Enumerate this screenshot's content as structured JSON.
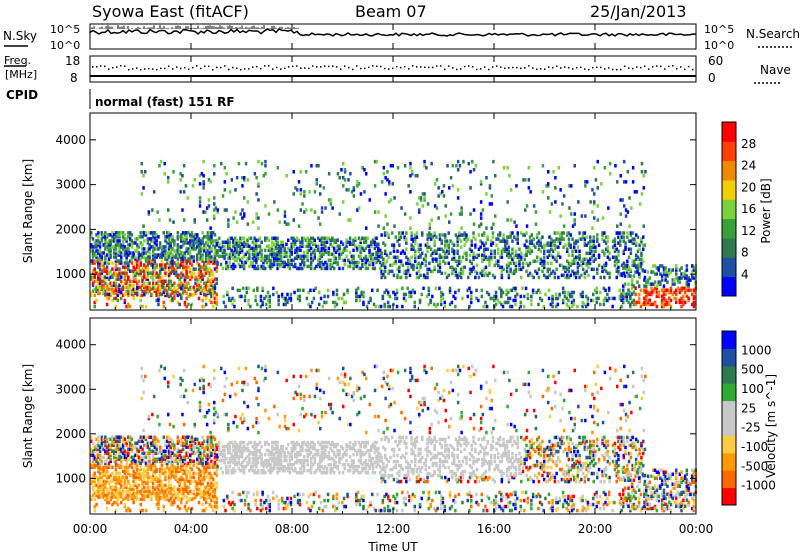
{
  "header": {
    "site": "Syowa East (fitACF)",
    "beam": "Beam 07",
    "date": "25/Jan/2013"
  },
  "noise_panel": {
    "left_label": "N.Sky",
    "left_ticks": [
      "10^5",
      "10^0"
    ],
    "right_label": "N.Search",
    "right_ticks": [
      "10^5",
      "10^0"
    ]
  },
  "freq_panel": {
    "left_label_line1": "Freq.",
    "left_label_line2": "[MHz]",
    "left_ticks": [
      "18",
      "8"
    ],
    "right_label": "Nave",
    "right_ticks": [
      "60",
      "0"
    ]
  },
  "cpid": {
    "label": "CPID",
    "value": "normal (fast) 151 RF"
  },
  "x_axis": {
    "label": "Time UT",
    "ticks": [
      "00:00",
      "04:00",
      "08:00",
      "12:00",
      "16:00",
      "20:00",
      "00:00"
    ]
  },
  "colors": {
    "power_scale": [
      "#0000ff",
      "#1f4fa3",
      "#2e7a4f",
      "#3aa03a",
      "#7bd23f",
      "#f0d000",
      "#f08a00",
      "#ff4000",
      "#ff0000"
    ],
    "velocity_scale": [
      "#ff0000",
      "#ff6a00",
      "#ff9a00",
      "#ffcc44",
      "#c8c8c8",
      "#c8c8c8",
      "#33aa33",
      "#2e7a4f",
      "#1f4fa3",
      "#0000ff"
    ]
  },
  "chart_data": [
    {
      "type": "heatmap",
      "name": "power",
      "xlabel": "",
      "ylabel": "Slant Range [km]",
      "xlim": [
        0,
        24
      ],
      "ylim": [
        200,
        4600
      ],
      "yticks": [
        "1000",
        "2000",
        "3000",
        "4000"
      ],
      "ytick_values": [
        1000,
        2000,
        3000,
        4000
      ],
      "colorbar_label": "Power [dB]",
      "colorbar_ticks": [
        "4",
        "8",
        "12",
        "16",
        "20",
        "24",
        "28"
      ],
      "colorbar_range": [
        0,
        30
      ]
    },
    {
      "type": "heatmap",
      "name": "velocity",
      "xlabel": "Time UT",
      "ylabel": "Slant Range [km]",
      "xlim": [
        0,
        24
      ],
      "ylim": [
        200,
        4600
      ],
      "yticks": [
        "1000",
        "2000",
        "3000",
        "4000"
      ],
      "ytick_values": [
        1000,
        2000,
        3000,
        4000
      ],
      "colorbar_label": "Velocity [m s^-1]",
      "colorbar_ticks": [
        "1000",
        "500",
        "100",
        "25",
        "-25",
        "-100",
        "-500",
        "-1000"
      ]
    }
  ]
}
